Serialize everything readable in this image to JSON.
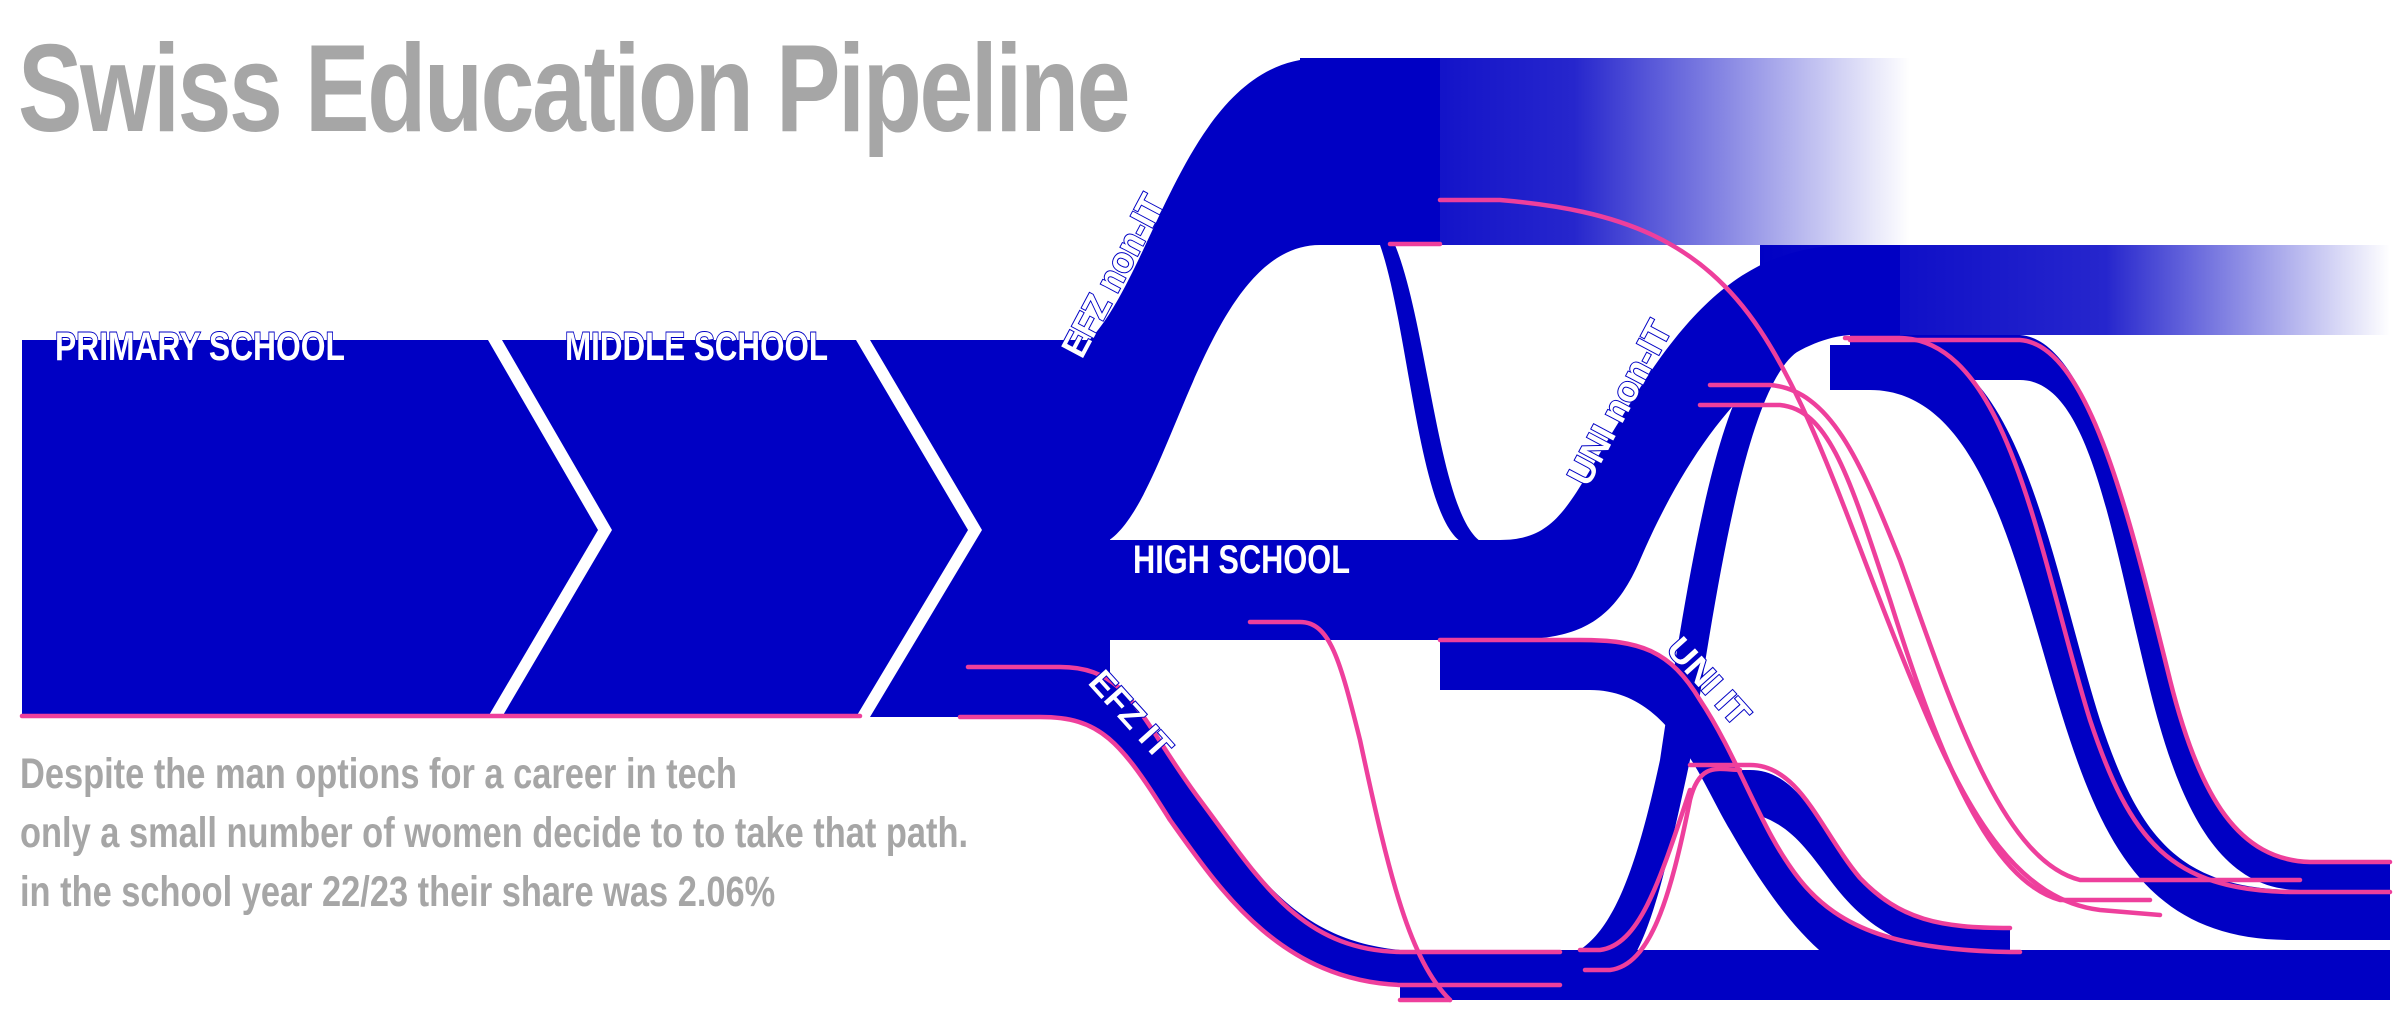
{
  "title": "Swiss Education Pipeline",
  "caption": {
    "line1": "Despite the man options for a career in tech",
    "line2": "only a small number of women decide to to take that path.",
    "line3": "in the school year 22/23 their share was 2.06%"
  },
  "stages": {
    "primary": "PRIMARY SCHOOL",
    "middle": "MIDDLE SCHOOL",
    "high": "HIGH SCHOOL",
    "efz_non_it": "EFZ non-IT",
    "uni_non_it": "UNI non-IT",
    "efz_it": "EFZ IT",
    "uni_it": "UNI IT"
  },
  "colors": {
    "flow": "#0000c4",
    "women_highlight": "#ee3f9c",
    "title_text": "#a6a6a6",
    "label_text": "#ffffff",
    "background": "#ffffff"
  }
}
